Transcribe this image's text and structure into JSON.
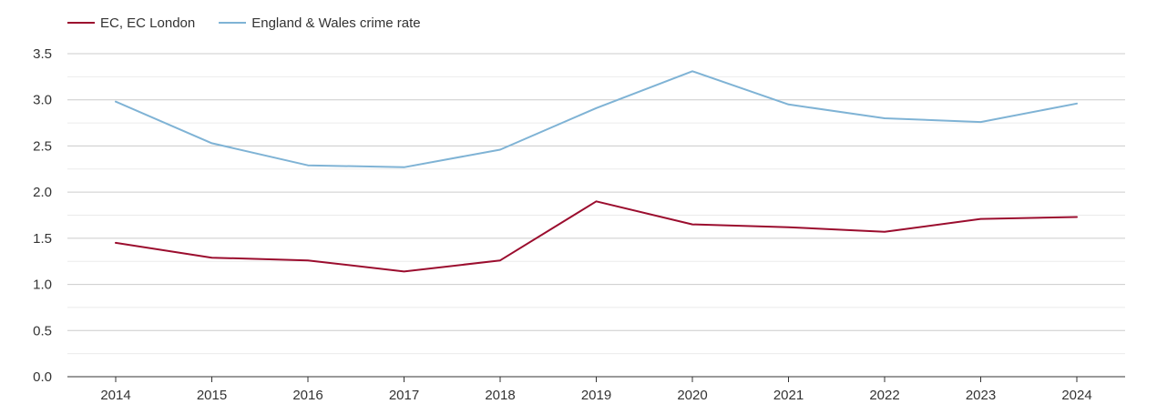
{
  "chart_data": {
    "type": "line",
    "title": "",
    "xlabel": "",
    "ylabel": "",
    "categories": [
      "2014",
      "2015",
      "2016",
      "2017",
      "2018",
      "2019",
      "2020",
      "2021",
      "2022",
      "2023",
      "2024"
    ],
    "ylim": [
      0,
      3.5
    ],
    "yticks": [
      "0.0",
      "0.5",
      "1.0",
      "1.5",
      "2.0",
      "2.5",
      "3.0",
      "3.5"
    ],
    "grid": true,
    "legend_position": "top-left",
    "series": [
      {
        "name": "EC, EC London",
        "color": "#9b0d2e",
        "values": [
          1.45,
          1.29,
          1.26,
          1.14,
          1.26,
          1.9,
          1.65,
          1.62,
          1.57,
          1.71,
          1.73
        ]
      },
      {
        "name": "England & Wales crime rate",
        "color": "#7fb3d5",
        "values": [
          2.98,
          2.53,
          2.29,
          2.27,
          2.46,
          2.91,
          3.31,
          2.95,
          2.8,
          2.76,
          2.96
        ]
      }
    ]
  }
}
